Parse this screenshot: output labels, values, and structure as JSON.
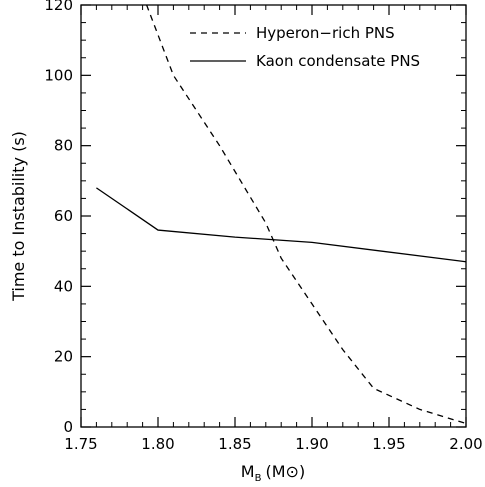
{
  "chart_data": {
    "type": "line",
    "xlabel": {
      "main": "M",
      "sub": "B",
      "unit": "(M⊙)"
    },
    "ylabel": "Time to Instability (s)",
    "xlim": [
      1.75,
      2.0
    ],
    "ylim": [
      0,
      120
    ],
    "xticks": [
      "1.75",
      "1.80",
      "1.85",
      "1.90",
      "1.95",
      "2.00"
    ],
    "yticks": [
      "0",
      "20",
      "40",
      "60",
      "80",
      "100",
      "120"
    ],
    "grid": false,
    "legend_position": "top-right",
    "series": [
      {
        "name": "Hyperon−rich PNS",
        "style": "dashed",
        "x": [
          1.79,
          1.81,
          1.84,
          1.87,
          1.88,
          1.9,
          1.92,
          1.94,
          1.97,
          2.0
        ],
        "y": [
          123,
          100,
          80,
          58,
          48,
          35,
          22,
          11,
          5,
          1
        ]
      },
      {
        "name": "Kaon condensate PNS",
        "style": "solid",
        "x": [
          1.76,
          1.8,
          1.85,
          1.9,
          2.0
        ],
        "y": [
          68,
          56,
          54,
          52.5,
          47
        ]
      }
    ]
  }
}
